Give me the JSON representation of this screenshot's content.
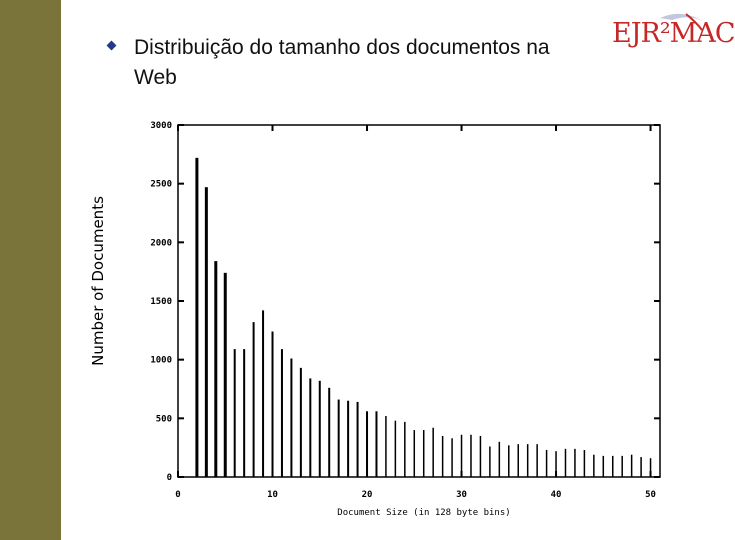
{
  "slide": {
    "title": "Distribuição do tamanho dos documentos na Web",
    "logo_text": "EJR²MAC",
    "colors": {
      "side_bar": "#7a743a",
      "bullet": "#1f3a8a",
      "logo": "#c62828"
    }
  },
  "chart_data": {
    "type": "bar",
    "title": "",
    "xlabel": "Document Size (in 128 byte bins)",
    "ylabel": "Number of Documents",
    "xlim": [
      0,
      51
    ],
    "ylim": [
      0,
      3000
    ],
    "xticks": [
      0,
      10,
      20,
      30,
      40,
      50
    ],
    "yticks": [
      0,
      500,
      1000,
      1500,
      2000,
      2500,
      3000
    ],
    "x_tick_labels": [
      "0",
      "10",
      "20",
      "30",
      "40",
      "50"
    ],
    "y_tick_labels": [
      "0",
      "500",
      "1000",
      "1500",
      "2000",
      "2500",
      "3000"
    ],
    "grid": false,
    "x": [
      2,
      3,
      4,
      5,
      6,
      7,
      8,
      9,
      10,
      11,
      12,
      13,
      14,
      15,
      16,
      17,
      18,
      19,
      20,
      21,
      22,
      23,
      24,
      25,
      26,
      27,
      28,
      29,
      30,
      31,
      32,
      33,
      34,
      35,
      36,
      37,
      38,
      39,
      40,
      41,
      42,
      43,
      44,
      45,
      46,
      47,
      48,
      49,
      50
    ],
    "values": [
      2720,
      2470,
      1840,
      1740,
      1090,
      1090,
      1320,
      1420,
      1240,
      1090,
      1010,
      930,
      840,
      820,
      760,
      660,
      650,
      640,
      560,
      560,
      520,
      480,
      470,
      400,
      400,
      420,
      350,
      330,
      360,
      360,
      350,
      260,
      300,
      270,
      280,
      280,
      280,
      230,
      220,
      240,
      240,
      230,
      190,
      180,
      180,
      180,
      190,
      170,
      160
    ]
  }
}
